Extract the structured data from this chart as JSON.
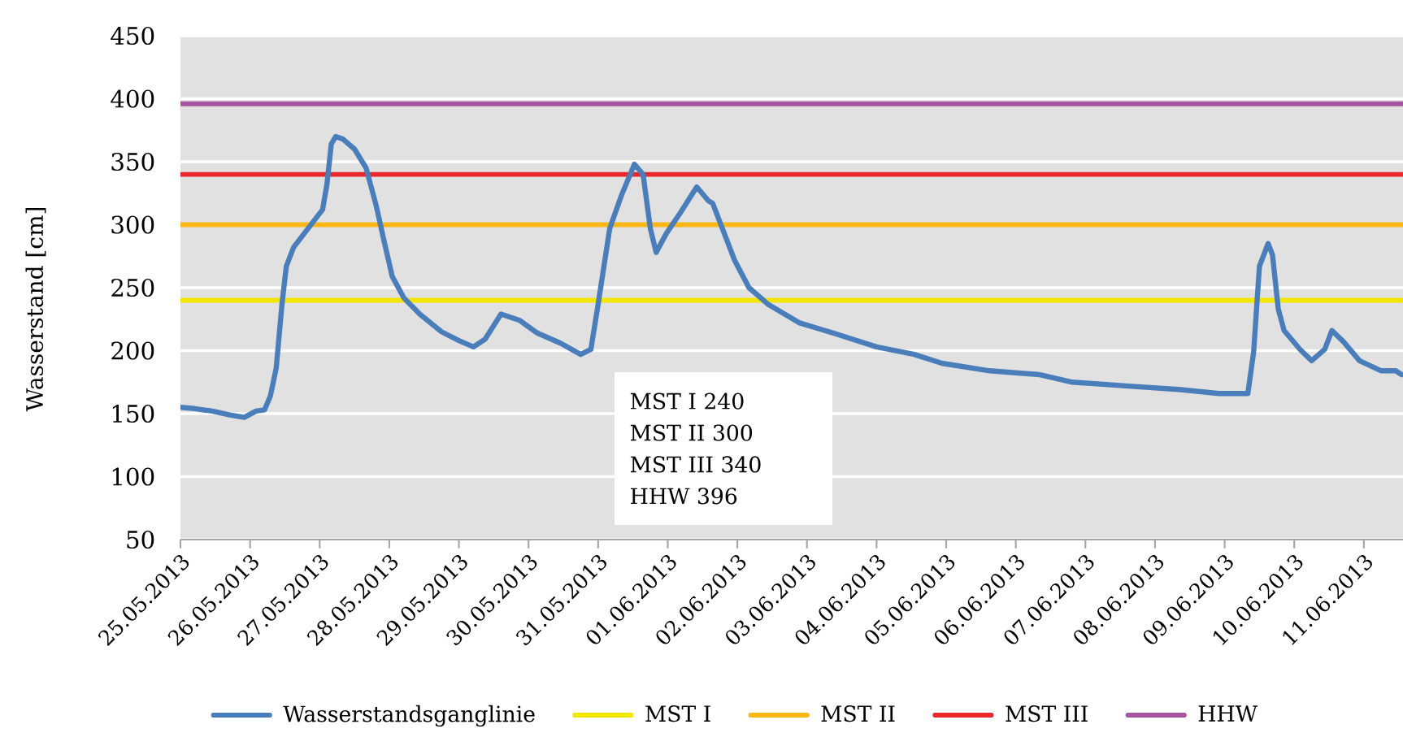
{
  "chart_data": {
    "type": "line",
    "ylabel": "Wasserstand [cm]",
    "x": [
      "2013-05-25T00:00",
      "2013-05-25T05:00",
      "2013-05-25T11:00",
      "2013-05-25T17:00",
      "2013-05-25T22:00",
      "2013-05-26T02:00",
      "2013-05-26T05:00",
      "2013-05-26T07:00",
      "2013-05-26T09:00",
      "2013-05-26T11:00",
      "2013-05-26T12:30",
      "2013-05-26T15:00",
      "2013-05-26T20:00",
      "2013-05-27T01:00",
      "2013-05-27T02:30",
      "2013-05-27T04:00",
      "2013-05-27T05:30",
      "2013-05-27T08:00",
      "2013-05-27T12:00",
      "2013-05-27T16:00",
      "2013-05-27T19:30",
      "2013-05-27T22:00",
      "2013-05-28T01:00",
      "2013-05-28T05:00",
      "2013-05-28T10:30",
      "2013-05-28T18:00",
      "2013-05-29T00:00",
      "2013-05-29T05:00",
      "2013-05-29T09:00",
      "2013-05-29T14:30",
      "2013-05-29T21:00",
      "2013-05-30T03:00",
      "2013-05-30T11:00",
      "2013-05-30T18:00",
      "2013-05-30T21:30",
      "2013-05-31T00:00",
      "2013-05-31T04:00",
      "2013-05-31T08:00",
      "2013-05-31T12:30",
      "2013-05-31T15:30",
      "2013-05-31T18:00",
      "2013-05-31T20:00",
      "2013-05-31T23:30",
      "2013-06-01T04:30",
      "2013-06-01T10:00",
      "2013-06-01T14:00",
      "2013-06-01T15:30",
      "2013-06-01T19:30",
      "2013-06-01T23:00",
      "2013-06-02T04:00",
      "2013-06-02T10:30",
      "2013-06-02T21:30",
      "2013-06-03T09:00",
      "2013-06-04T00:00",
      "2013-06-04T13:00",
      "2013-06-04T22:30",
      "2013-06-05T15:00",
      "2013-06-06T08:00",
      "2013-06-06T19:30",
      "2013-06-07T14:00",
      "2013-06-08T09:00",
      "2013-06-08T22:00",
      "2013-06-09T08:00",
      "2013-06-09T10:00",
      "2013-06-09T12:00",
      "2013-06-09T15:00",
      "2013-06-09T16:30",
      "2013-06-09T18:30",
      "2013-06-09T20:30",
      "2013-06-10T02:00",
      "2013-06-10T06:00",
      "2013-06-10T10:30",
      "2013-06-10T13:00",
      "2013-06-10T17:00",
      "2013-06-10T22:30",
      "2013-06-11T06:00",
      "2013-06-11T11:00",
      "2013-06-11T13:00"
    ],
    "series": [
      {
        "name": "Wasserstandsganglinie",
        "color": "#4a7ebb",
        "values": [
          155,
          154,
          152,
          149,
          147,
          152,
          153,
          164,
          186,
          237,
          267,
          282,
          297,
          312,
          332,
          364,
          370,
          368,
          360,
          345,
          315,
          289,
          259,
          242,
          229,
          215,
          208,
          203,
          209,
          229,
          224,
          214,
          206,
          197,
          201,
          237,
          297,
          323,
          348,
          340,
          297,
          278,
          293,
          310,
          330,
          319,
          317,
          293,
          272,
          250,
          237,
          222,
          214,
          203,
          197,
          190,
          184,
          181,
          175,
          172,
          169,
          166,
          166,
          199,
          267,
          285,
          276,
          233,
          216,
          201,
          192,
          201,
          216,
          207,
          192,
          184,
          184,
          181
        ]
      }
    ],
    "ref_lines": [
      {
        "axis": "y",
        "value": 240,
        "label": "MST I",
        "color": "#f2e600"
      },
      {
        "axis": "y",
        "value": 300,
        "label": "MST II",
        "color": "#fbb818"
      },
      {
        "axis": "y",
        "value": 340,
        "label": "MST III",
        "color": "#e8282c"
      },
      {
        "axis": "y",
        "value": 396,
        "label": "HHW",
        "color": "#a4559e"
      }
    ],
    "annotations": [
      "MST I 240",
      "MST II 300",
      "MST III 340",
      "HHW 396"
    ],
    "xlim": [
      "2013-05-25T00:00",
      "2013-06-11T13:30"
    ],
    "xticks": [
      {
        "value": "2013-05-25",
        "label": "25.05.2013"
      },
      {
        "value": "2013-05-26",
        "label": "26.05.2013"
      },
      {
        "value": "2013-05-27",
        "label": "27.05.2013"
      },
      {
        "value": "2013-05-28",
        "label": "28.05.2013"
      },
      {
        "value": "2013-05-29",
        "label": "29.05.2013"
      },
      {
        "value": "2013-05-30",
        "label": "30.05.2013"
      },
      {
        "value": "2013-05-31",
        "label": "31.05.2013"
      },
      {
        "value": "2013-06-01",
        "label": "01.06.2013"
      },
      {
        "value": "2013-06-02",
        "label": "02.06.2013"
      },
      {
        "value": "2013-06-03",
        "label": "03.06.2013"
      },
      {
        "value": "2013-06-04",
        "label": "04.06.2013"
      },
      {
        "value": "2013-06-05",
        "label": "05.06.2013"
      },
      {
        "value": "2013-06-06",
        "label": "06.06.2013"
      },
      {
        "value": "2013-06-07",
        "label": "07.06.2013"
      },
      {
        "value": "2013-06-08",
        "label": "08.06.2013"
      },
      {
        "value": "2013-06-09",
        "label": "09.06.2013"
      },
      {
        "value": "2013-06-10",
        "label": "10.06.2013"
      },
      {
        "value": "2013-06-11",
        "label": "11.06.2013"
      }
    ],
    "ylim": [
      50,
      450
    ],
    "yticks": [
      50,
      100,
      150,
      200,
      250,
      300,
      350,
      400,
      450
    ],
    "grid": "y",
    "legend": "bottom"
  }
}
